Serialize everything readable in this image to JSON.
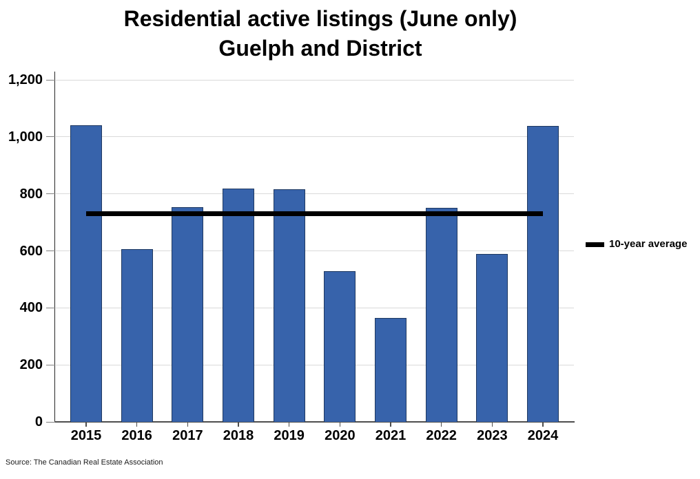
{
  "title": {
    "line1": "Residential active listings (June only)",
    "line2": "Guelph and District"
  },
  "legend": {
    "label": "10-year average",
    "swatch_icon": "thick-black-line"
  },
  "source_note": "Source: The Canadian Real Estate Association",
  "colors": {
    "bar_fill": "#3763AB",
    "bar_border": "#1E3860",
    "average_line": "#000000",
    "gridline": "#D9D9D9",
    "axis_line": "#4D4D4D",
    "tick": "#808080",
    "text": "#000000"
  },
  "chart_data": {
    "type": "bar",
    "title": "Residential active listings (June only) Guelph and District",
    "categories": [
      "2015",
      "2016",
      "2017",
      "2018",
      "2019",
      "2020",
      "2021",
      "2022",
      "2023",
      "2024"
    ],
    "values": [
      1040,
      605,
      753,
      818,
      815,
      529,
      364,
      751,
      590,
      1038
    ],
    "series_note": "bar heights are active listings counts read from axis",
    "overlay_line": {
      "label": "10-year average",
      "value": 730
    },
    "xlabel": "",
    "ylabel": "",
    "ylim": [
      0,
      1200
    ],
    "yticks": [
      0,
      200,
      400,
      600,
      800,
      1000,
      1200
    ],
    "ytick_labels": [
      "0",
      "200",
      "400",
      "600",
      "800",
      "1,000",
      "1,200"
    ],
    "grid": true,
    "legend_position": "right-middle"
  }
}
